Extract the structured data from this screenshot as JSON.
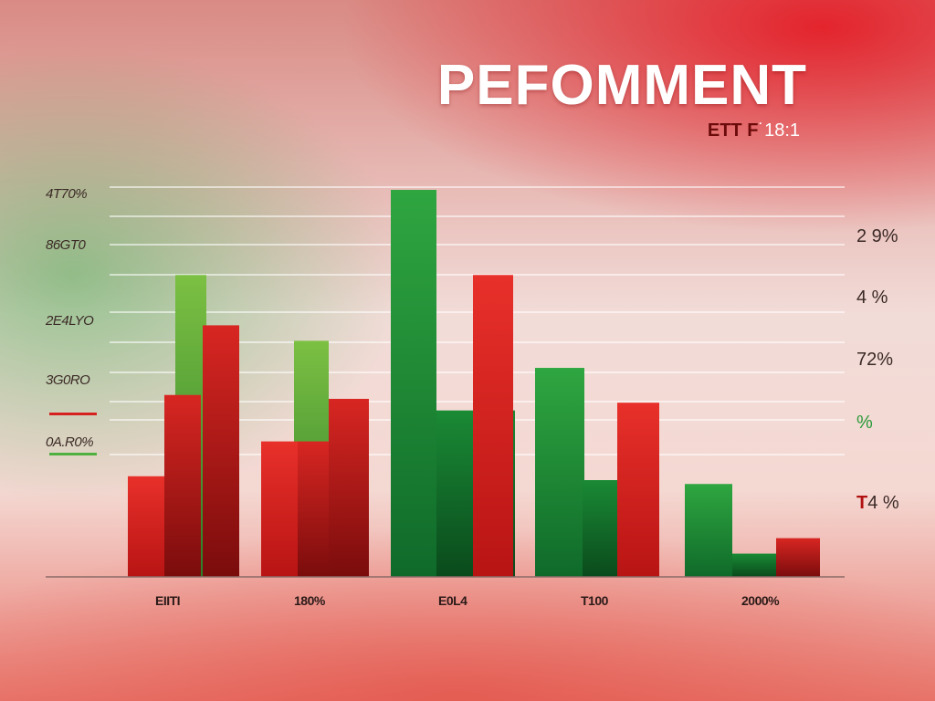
{
  "chart_data": {
    "type": "bar",
    "title": "PEFOMMENT",
    "subtitle_dark": "ETT F",
    "subtitle_light": "˙18:1",
    "left_tick_labels": [
      "4T70%",
      "86GT0",
      "2E4LYO",
      "3G0RO",
      "0A.R0%"
    ],
    "right_tick_labels": [
      "2 9%",
      "4 %",
      "72%",
      "%",
      "4 %"
    ],
    "right_tick_highlights": [
      "",
      "",
      "",
      "",
      "T"
    ],
    "categories": [
      "EIITI",
      "180%",
      "E0L4",
      "T100",
      "2000%"
    ],
    "series": [
      {
        "color": "#d62020",
        "values": [
          26,
          35,
          0,
          0,
          0
        ]
      },
      {
        "color": "#c01818",
        "values": [
          47,
          35,
          0,
          0,
          0
        ]
      },
      {
        "color": "#4fb040",
        "values": [
          78,
          61,
          100,
          54,
          24
        ]
      },
      {
        "color": "#c81a1a",
        "values": [
          65,
          46,
          78,
          45,
          10
        ]
      }
    ],
    "ylim": [
      0,
      100
    ]
  }
}
